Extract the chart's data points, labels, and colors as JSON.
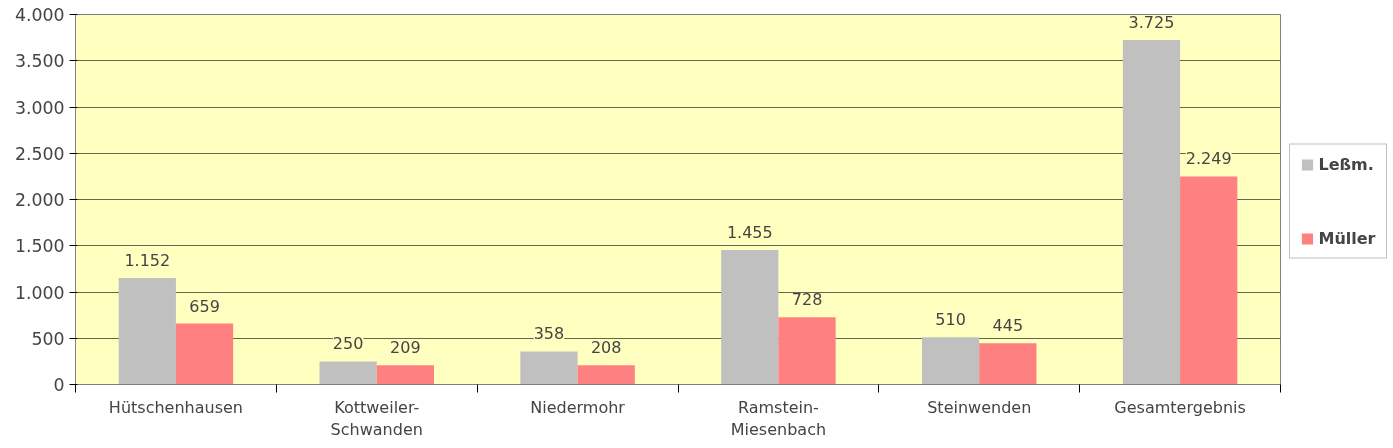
{
  "chart_data": {
    "type": "bar",
    "categories": [
      "Hütschenhausen",
      "Kottweiler-\nSchwanden",
      "Niedermohr",
      "Ramstein-\nMiesenbach",
      "Steinwenden",
      "Gesamtergebnis"
    ],
    "series": [
      {
        "name": "Leßm.",
        "color": "#c0c0c0",
        "values": [
          1152,
          250,
          358,
          1455,
          510,
          3725
        ],
        "value_labels": [
          "1.152",
          "250",
          "358",
          "1.455",
          "510",
          "3.725"
        ]
      },
      {
        "name": "Müller",
        "color": "#ff8080",
        "values": [
          659,
          209,
          208,
          728,
          445,
          2249
        ],
        "value_labels": [
          "659",
          "209",
          "208",
          "728",
          "445",
          "2.249"
        ]
      }
    ],
    "ylim": [
      0,
      4000
    ],
    "yticks": [
      0,
      {
        "value": 500,
        "label": "500"
      },
      {
        "value": 1000,
        "label": "1.000"
      },
      {
        "value": 1500,
        "label": "1.500"
      },
      {
        "value": 2000,
        "label": "2.000"
      },
      {
        "value": 2500,
        "label": "2.500"
      },
      {
        "value": 3000,
        "label": "3.000"
      },
      {
        "value": 3500,
        "label": "3.500"
      },
      {
        "value": 4000,
        "label": "4.000"
      }
    ],
    "grid": "y",
    "legend": "right"
  }
}
